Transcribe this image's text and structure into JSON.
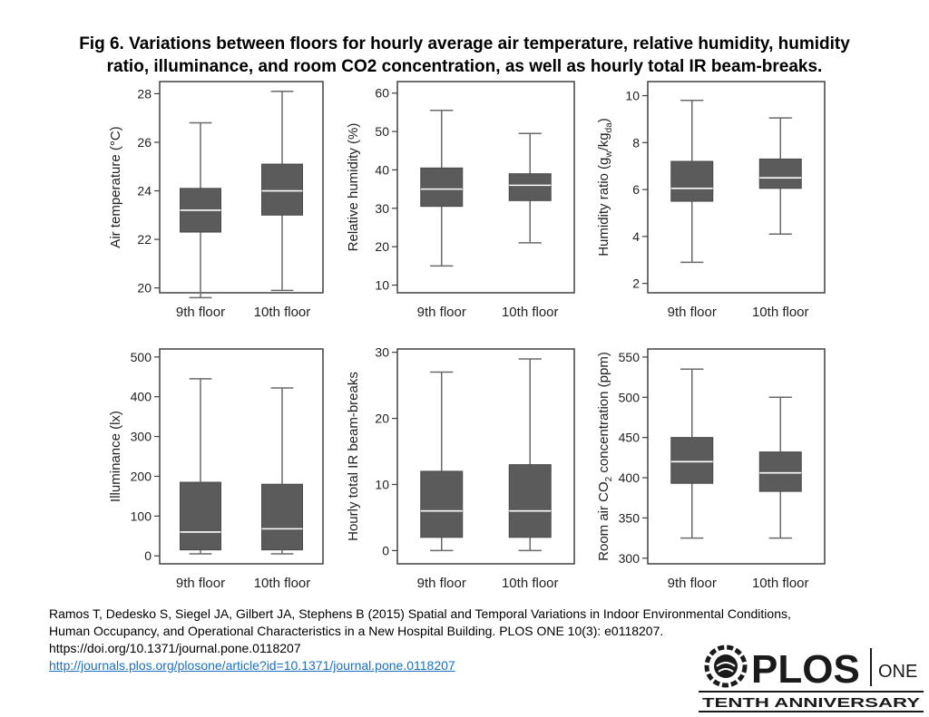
{
  "title": {
    "line1": "Fig 6. Variations between floors for hourly average air temperature, relative humidity, humidity",
    "line2": "ratio, illuminance, and room CO2 concentration, as well as hourly total IR beam-breaks."
  },
  "chart_data": [
    {
      "type": "box",
      "ylabel": "Air temperature (°C)",
      "categories": [
        "9th floor",
        "10th floor"
      ],
      "ylim": [
        19.8,
        28.5
      ],
      "yticks": [
        20,
        22,
        24,
        26,
        28
      ],
      "boxes": [
        {
          "min": 19.6,
          "q1": 22.3,
          "median": 23.2,
          "q3": 24.1,
          "max": 26.8
        },
        {
          "min": 19.9,
          "q1": 23.0,
          "median": 24.0,
          "q3": 25.1,
          "max": 28.1
        }
      ]
    },
    {
      "type": "box",
      "ylabel": "Relative humidity (%)",
      "categories": [
        "9th floor",
        "10th floor"
      ],
      "ylim": [
        8,
        63
      ],
      "yticks": [
        10,
        20,
        30,
        40,
        50,
        60
      ],
      "boxes": [
        {
          "min": 15,
          "q1": 30.5,
          "median": 35,
          "q3": 40.5,
          "max": 55.5
        },
        {
          "min": 21,
          "q1": 32,
          "median": 36,
          "q3": 39,
          "max": 49.5
        }
      ]
    },
    {
      "type": "box",
      "ylabel": "Humidity ratio (g",
      "ylabel_sub1": "w",
      "ylabel_mid": "/kg",
      "ylabel_sub2": "da",
      "ylabel_end": ")",
      "categories": [
        "9th floor",
        "10th floor"
      ],
      "ylim": [
        1.6,
        10.6
      ],
      "yticks": [
        2,
        4,
        6,
        8,
        10
      ],
      "boxes": [
        {
          "min": 2.9,
          "q1": 5.5,
          "median": 6.05,
          "q3": 7.2,
          "max": 9.8
        },
        {
          "min": 4.1,
          "q1": 6.05,
          "median": 6.5,
          "q3": 7.3,
          "max": 9.05
        }
      ]
    },
    {
      "type": "box",
      "ylabel": "Illuminance (lx)",
      "categories": [
        "9th floor",
        "10th floor"
      ],
      "ylim": [
        -20,
        520
      ],
      "yticks": [
        0,
        100,
        200,
        300,
        400,
        500
      ],
      "boxes": [
        {
          "min": 5,
          "q1": 15,
          "median": 60,
          "q3": 185,
          "max": 445
        },
        {
          "min": 5,
          "q1": 15,
          "median": 68,
          "q3": 180,
          "max": 422
        }
      ]
    },
    {
      "type": "box",
      "ylabel": "Hourly total IR beam-breaks",
      "categories": [
        "9th floor",
        "10th floor"
      ],
      "ylim": [
        -2,
        30.5
      ],
      "yticks": [
        0,
        10,
        20,
        30
      ],
      "boxes": [
        {
          "min": 0,
          "q1": 2,
          "median": 6,
          "q3": 12,
          "max": 27
        },
        {
          "min": 0,
          "q1": 2,
          "median": 6,
          "q3": 13,
          "max": 29
        }
      ]
    },
    {
      "type": "box",
      "ylabel": "Room air CO",
      "ylabel_sub1": "2",
      "ylabel_mid": " concentration (ppm)",
      "categories": [
        "9th floor",
        "10th floor"
      ],
      "ylim": [
        293,
        560
      ],
      "yticks": [
        300,
        350,
        400,
        450,
        500,
        550
      ],
      "boxes": [
        {
          "min": 325,
          "q1": 393,
          "median": 420,
          "q3": 450,
          "max": 535
        },
        {
          "min": 325,
          "q1": 383,
          "median": 406,
          "q3": 432,
          "max": 500
        }
      ]
    }
  ],
  "citation": {
    "line1": "Ramos T, Dedesko S, Siegel JA, Gilbert JA, Stephens B (2015) Spatial and Temporal Variations in Indoor Environmental Conditions,",
    "line2": "Human Occupancy, and Operational Characteristics in a New Hospital Building. PLOS ONE 10(3): e0118207.",
    "line3": "https://doi.org/10.1371/journal.pone.0118207",
    "link": "http://journals.plos.org/plosone/article?id=10.1371/journal.pone.0118207"
  },
  "logo": {
    "brand": "PLOS",
    "journal": "ONE",
    "tagline": "TENTH ANNIVERSARY"
  },
  "colors": {
    "box_fill": "#5b5b5b",
    "axis": "#404040",
    "whisker": "#6a6a6a",
    "link": "#1a6fc4"
  }
}
